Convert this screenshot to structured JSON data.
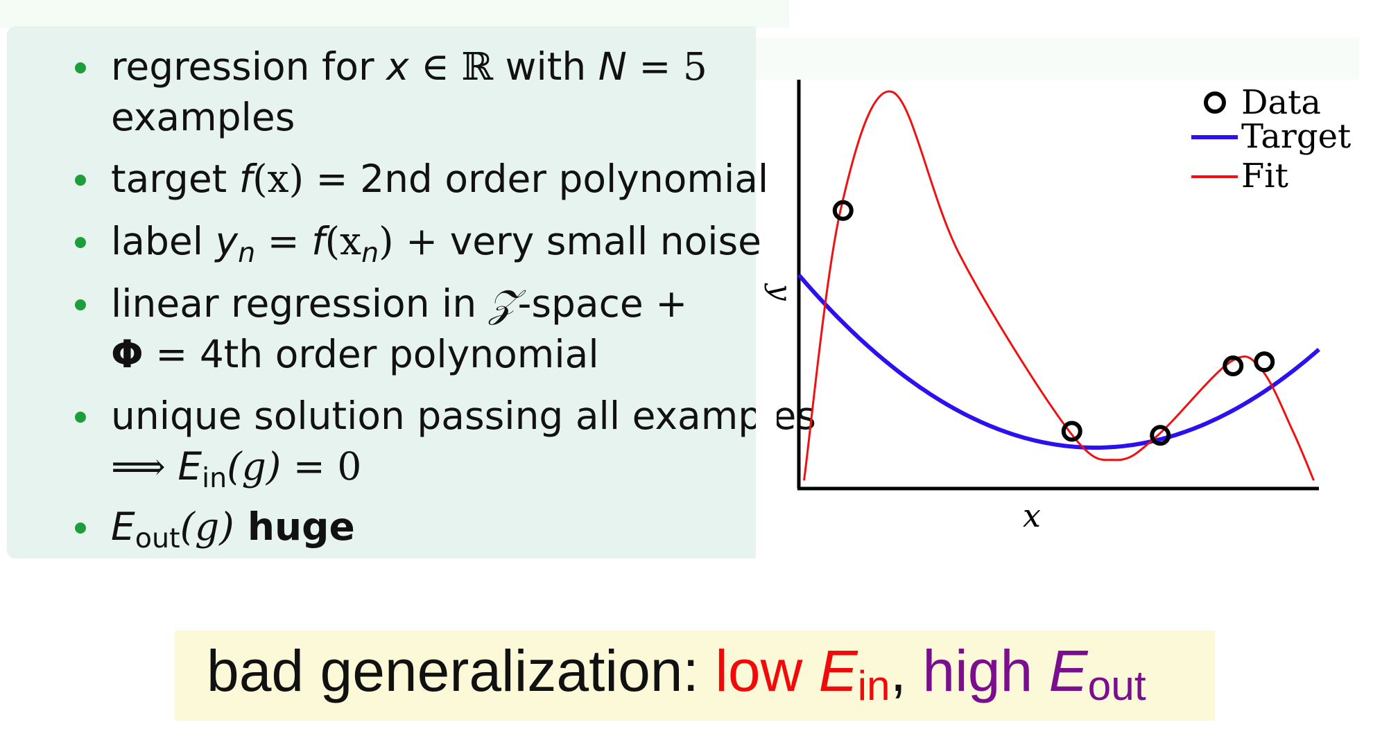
{
  "bullets": [
    {
      "line1a": "regression for ",
      "var_x": "x",
      "member": " ∈ ℝ",
      "with": " with ",
      "var_N": "N",
      "eq": " = 5",
      "line2": "examples"
    },
    {
      "target": "target ",
      "f": "f",
      "paren": "(x)",
      "rest": " = 2nd order polynomial"
    },
    {
      "label": "label ",
      "y": "y",
      "n": "n",
      "eq": " = ",
      "f": "f",
      "open": "(x",
      "n2": "n",
      "close": ")",
      "plus": " + ",
      "rest": "very small noise"
    },
    {
      "line1": "linear regression in ",
      "Z": "𝒵",
      "line1b": "-space +",
      "phi": "Φ",
      "line2": " = 4th order polynomial"
    },
    {
      "line1": "unique solution passing all examples",
      "implies": "⟹ ",
      "E": "E",
      "in": "in",
      "g": "(g)",
      "eq": " = 0"
    },
    {
      "E": "E",
      "out": "out",
      "g": "(g)",
      "huge": " huge"
    }
  ],
  "chart_data": {
    "type": "line",
    "xlabel": "x",
    "ylabel": "y",
    "xlim": [
      0,
      1
    ],
    "ylim": [
      0,
      1
    ],
    "series": [
      {
        "name": "Target",
        "color": "#2b10f0",
        "function": "1.3*(x-0.57)^2 + 0.1"
      },
      {
        "name": "Fit",
        "color": "#f01010",
        "values": [
          [
            0.01,
            0.02
          ],
          [
            0.08,
            0.68
          ],
          [
            0.18,
            0.97
          ],
          [
            0.31,
            0.57
          ],
          [
            0.52,
            0.14
          ],
          [
            0.61,
            0.07
          ],
          [
            0.69,
            0.13
          ],
          [
            0.83,
            0.31
          ],
          [
            0.89,
            0.29
          ],
          [
            0.95,
            0.14
          ],
          [
            0.99,
            0.02
          ]
        ]
      }
    ],
    "points": {
      "name": "Data",
      "x": [
        0.085,
        0.525,
        0.695,
        0.835,
        0.895
      ],
      "y": [
        0.68,
        0.14,
        0.13,
        0.3,
        0.31
      ]
    },
    "legend": [
      {
        "label": "Data",
        "kind": "marker"
      },
      {
        "label": "Target",
        "color": "#2b10f0"
      },
      {
        "label": "Fit",
        "color": "#f01010"
      }
    ],
    "legend_position": "top-right"
  },
  "banner": {
    "part1": "bad generalization: ",
    "low": "low ",
    "E1": "E",
    "in": "in",
    "comma": ", ",
    "high": "high ",
    "E2": "E",
    "out": "out"
  },
  "colors": {
    "panel": "#e6f3ee",
    "bullet_dot": "#1d9e3b",
    "blue": "#1f16e8",
    "red": "#f00a0a",
    "purple": "#7a0e8c",
    "banner": "#fbf9d8"
  }
}
